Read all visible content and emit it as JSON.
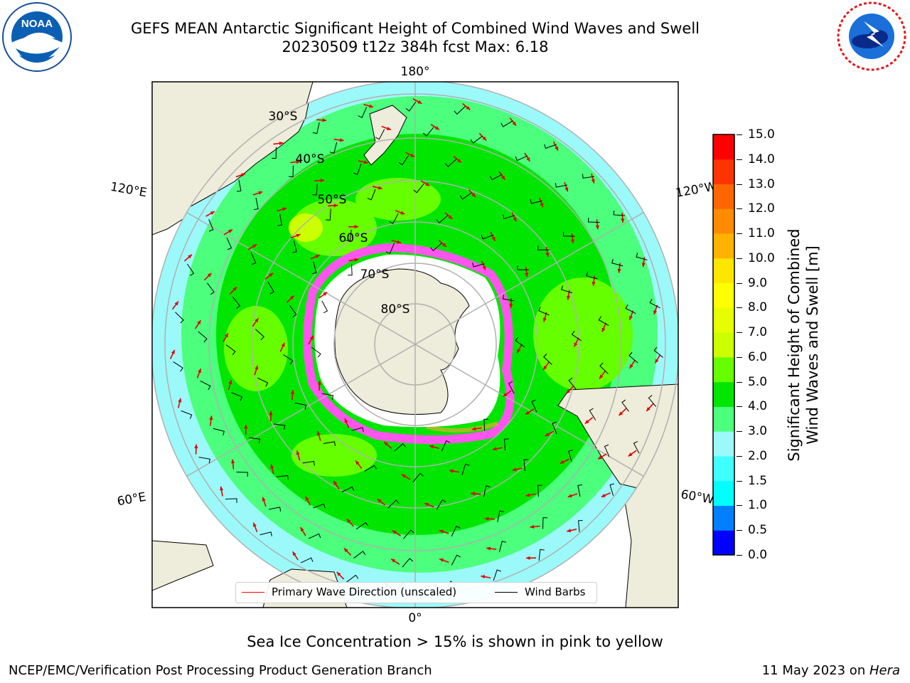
{
  "header": {
    "title_line1": "GEFS MEAN Antarctic Significant Height of Combined Wind Waves and Swell",
    "title_line2": "20230509 t12z 384h fcst   Max: 6.18",
    "left_logo_text": "NOAA",
    "left_logo_ring_text": "NATIONAL OCEANIC AND ATMOSPHERIC ADMINISTRATION · U.S. DEPARTMENT OF COMMERCE",
    "right_logo_ring_text": "NATIONAL WEATHER SERVICE"
  },
  "map": {
    "projection": "south-polar-stereographic",
    "longitude_labels": {
      "top": "180°",
      "bottom": "0°",
      "upper_left": "120°E",
      "upper_right": "120°W",
      "lower_left": "60°E",
      "lower_right": "60°W"
    },
    "latitude_labels": [
      "30°S",
      "40°S",
      "50°S",
      "60°S",
      "70°S",
      "80°S"
    ],
    "colors": {
      "land": "#eeecda",
      "ice_shelf": "#ffffff",
      "graticule": "#b0b0b0",
      "sea_ice": "#ff55ee",
      "wave_arrow": "#ff0000",
      "wind_barb": "#000000"
    }
  },
  "legend": {
    "primary_wave_label": "Primary Wave Direction (unscaled)",
    "wind_barbs_label": "Wind Barbs",
    "primary_wave_color": "#ff0000",
    "wind_barbs_color": "#000000"
  },
  "colorbar": {
    "label_line1": "Significant Height of Combined",
    "label_line2": "Wind Waves and Swell [m]",
    "ticks": [
      "15.0",
      "14.0",
      "13.0",
      "12.0",
      "11.0",
      "10.0",
      "9.0",
      "8.0",
      "7.0",
      "6.0",
      "5.0",
      "4.0",
      "3.0",
      "2.0",
      "1.5",
      "1.0",
      "0.5",
      "0.0"
    ],
    "bins": [
      {
        "from": 0.0,
        "to": 0.5,
        "color": "#0000ff"
      },
      {
        "from": 0.5,
        "to": 1.0,
        "color": "#0080ff"
      },
      {
        "from": 1.0,
        "to": 1.5,
        "color": "#00ffff"
      },
      {
        "from": 1.5,
        "to": 2.0,
        "color": "#40ffff"
      },
      {
        "from": 2.0,
        "to": 3.0,
        "color": "#9cf9f9"
      },
      {
        "from": 3.0,
        "to": 4.0,
        "color": "#4cff7c"
      },
      {
        "from": 4.0,
        "to": 5.0,
        "color": "#00e600"
      },
      {
        "from": 5.0,
        "to": 6.0,
        "color": "#66ff00"
      },
      {
        "from": 6.0,
        "to": 7.0,
        "color": "#ccff00"
      },
      {
        "from": 7.0,
        "to": 8.0,
        "color": "#e6ff00"
      },
      {
        "from": 8.0,
        "to": 9.0,
        "color": "#ffff00"
      },
      {
        "from": 9.0,
        "to": 10.0,
        "color": "#ffe600"
      },
      {
        "from": 10.0,
        "to": 11.0,
        "color": "#ffb300"
      },
      {
        "from": 11.0,
        "to": 12.0,
        "color": "#ff8c00"
      },
      {
        "from": 12.0,
        "to": 13.0,
        "color": "#ff6600"
      },
      {
        "from": 13.0,
        "to": 14.0,
        "color": "#ff3300"
      },
      {
        "from": 14.0,
        "to": 15.0,
        "color": "#ff0000"
      }
    ]
  },
  "footer": {
    "sea_ice_note": "Sea Ice Concentration > 15% is shown in pink to yellow",
    "credit": "NCEP/EMC/Verification Post Processing Product Generation Branch",
    "date_prefix": "11 May 2023 on ",
    "date_system": "Hera"
  }
}
